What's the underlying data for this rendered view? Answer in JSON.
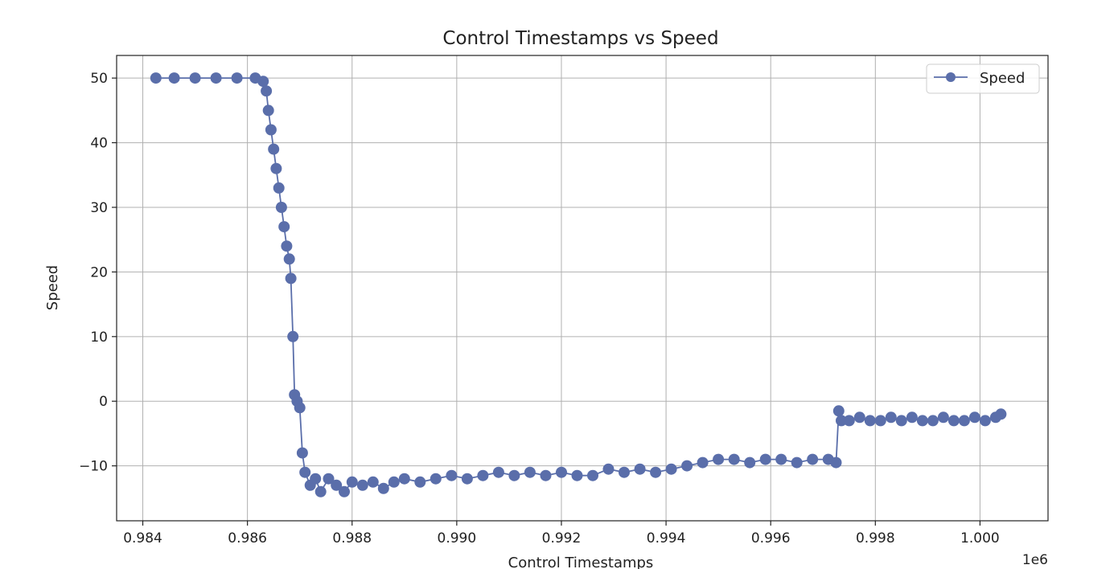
{
  "chart_data": {
    "type": "line",
    "title": "Control Timestamps vs Speed",
    "xlabel": "Control Timestamps",
    "ylabel": "Speed",
    "x_offset_text": "1e6",
    "xlim": [
      983500,
      1001300
    ],
    "ylim": [
      -18.5,
      53.5
    ],
    "x_ticks": [
      984000,
      986000,
      988000,
      990000,
      992000,
      994000,
      996000,
      998000,
      1000000
    ],
    "x_tick_labels": [
      "0.984",
      "0.986",
      "0.988",
      "0.990",
      "0.992",
      "0.994",
      "0.996",
      "0.998",
      "1.000"
    ],
    "y_ticks": [
      -10,
      0,
      10,
      20,
      30,
      40,
      50
    ],
    "y_tick_labels": [
      "−10",
      "0",
      "10",
      "20",
      "30",
      "40",
      "50"
    ],
    "grid": true,
    "legend_position": "top-right",
    "series": [
      {
        "name": "Speed",
        "color": "#5a6eaa",
        "marker": "circle",
        "x": [
          984250,
          984600,
          985000,
          985400,
          985800,
          986150,
          986300,
          986360,
          986400,
          986450,
          986500,
          986550,
          986600,
          986650,
          986700,
          986750,
          986800,
          986830,
          986870,
          986900,
          986950,
          987000,
          987050,
          987100,
          987200,
          987300,
          987400,
          987550,
          987700,
          987850,
          988000,
          988200,
          988400,
          988600,
          988800,
          989000,
          989300,
          989600,
          989900,
          990200,
          990500,
          990800,
          991100,
          991400,
          991700,
          992000,
          992300,
          992600,
          992900,
          993200,
          993500,
          993800,
          994100,
          994400,
          994700,
          995000,
          995300,
          995600,
          995900,
          996200,
          996500,
          996800,
          997100,
          997250,
          997300,
          997350,
          997500,
          997700,
          997900,
          998100,
          998300,
          998500,
          998700,
          998900,
          999100,
          999300,
          999500,
          999700,
          999900,
          1000100,
          1000300,
          1000400
        ],
        "y": [
          50,
          50,
          50,
          50,
          50,
          50,
          49.5,
          48,
          45,
          42,
          39,
          36,
          33,
          30,
          27,
          24,
          22,
          19,
          10,
          1,
          0,
          -1,
          -8,
          -11,
          -13,
          -12,
          -14,
          -12,
          -13,
          -14,
          -12.5,
          -13,
          -12.5,
          -13.5,
          -12.5,
          -12,
          -12.5,
          -12,
          -11.5,
          -12,
          -11.5,
          -11,
          -11.5,
          -11,
          -11.5,
          -11,
          -11.5,
          -11.5,
          -10.5,
          -11,
          -10.5,
          -11,
          -10.5,
          -10,
          -9.5,
          -9,
          -9,
          -9.5,
          -9,
          -9,
          -9.5,
          -9,
          -9,
          -9.5,
          -1.5,
          -3,
          -3,
          -2.5,
          -3,
          -3,
          -2.5,
          -3,
          -2.5,
          -3,
          -3,
          -2.5,
          -3,
          -3,
          -2.5,
          -3,
          -2.5,
          -2
        ]
      }
    ]
  }
}
